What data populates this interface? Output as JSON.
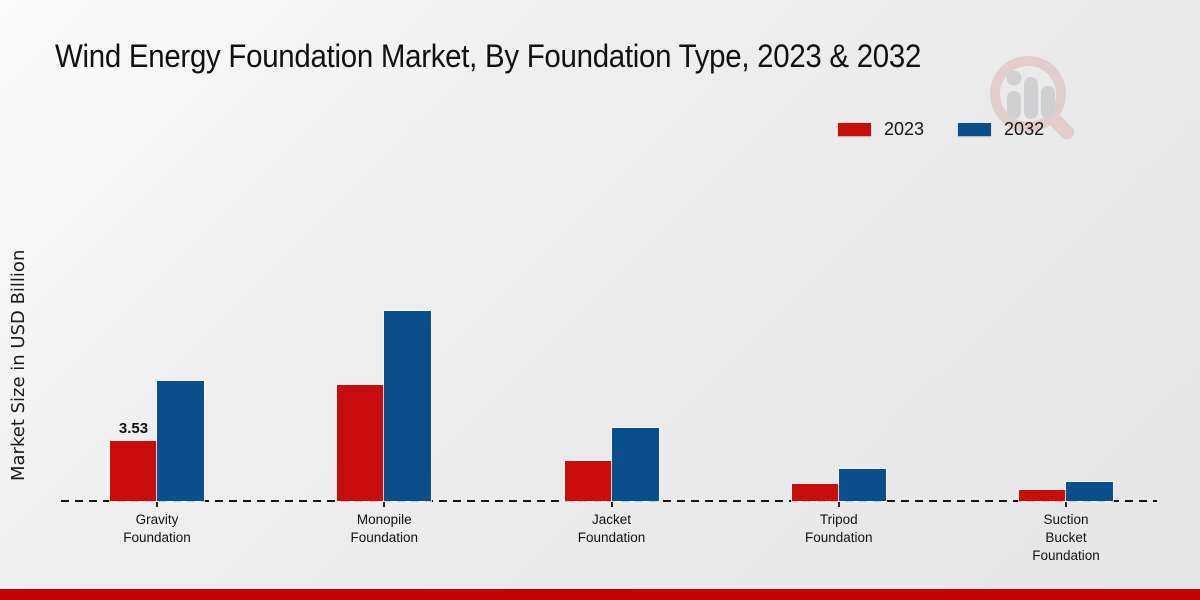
{
  "title": "Wind Energy Foundation Market, By Foundation Type, 2023 & 2032",
  "y_axis_label": "Market Size in USD Billion",
  "legend": {
    "items": [
      {
        "label": "2023",
        "color": "#c90c0c"
      },
      {
        "label": "2032",
        "color": "#0a4f8c"
      }
    ]
  },
  "watermark": {
    "icon": "magnifier-bar-chart-logo",
    "ring_color": "#ddb6b6",
    "bar_color": "#bcbcc0"
  },
  "footer": {
    "color": "#c40404"
  },
  "chart_data": {
    "type": "bar",
    "title": "Wind Energy Foundation Market, By Foundation Type, 2023 & 2032",
    "categories": [
      "Gravity Foundation",
      "Monopile Foundation",
      "Jacket Foundation",
      "Tripod Foundation",
      "Suction Bucket Foundation"
    ],
    "category_lines": [
      [
        "Gravity",
        "Foundation"
      ],
      [
        "Monopile",
        "Foundation"
      ],
      [
        "Jacket",
        "Foundation"
      ],
      [
        "Tripod",
        "Foundation"
      ],
      [
        "Suction",
        "Bucket",
        "Foundation"
      ]
    ],
    "series": [
      {
        "name": "2023",
        "color": "#c90c0c",
        "values": [
          3.53,
          6.82,
          2.35,
          0.98,
          0.65
        ]
      },
      {
        "name": "2032",
        "color": "#0a4f8c",
        "values": [
          7.06,
          11.18,
          4.28,
          1.9,
          1.12
        ]
      }
    ],
    "xlabel": "",
    "ylabel": "Market Size in USD Billion",
    "ylim": [
      0,
      12
    ],
    "grid": false,
    "legend_position": "top-right",
    "baseline_style": "dashed-zero-line",
    "annotations": [
      {
        "series": "2023",
        "category_index": 0,
        "text": "3.53"
      }
    ]
  }
}
